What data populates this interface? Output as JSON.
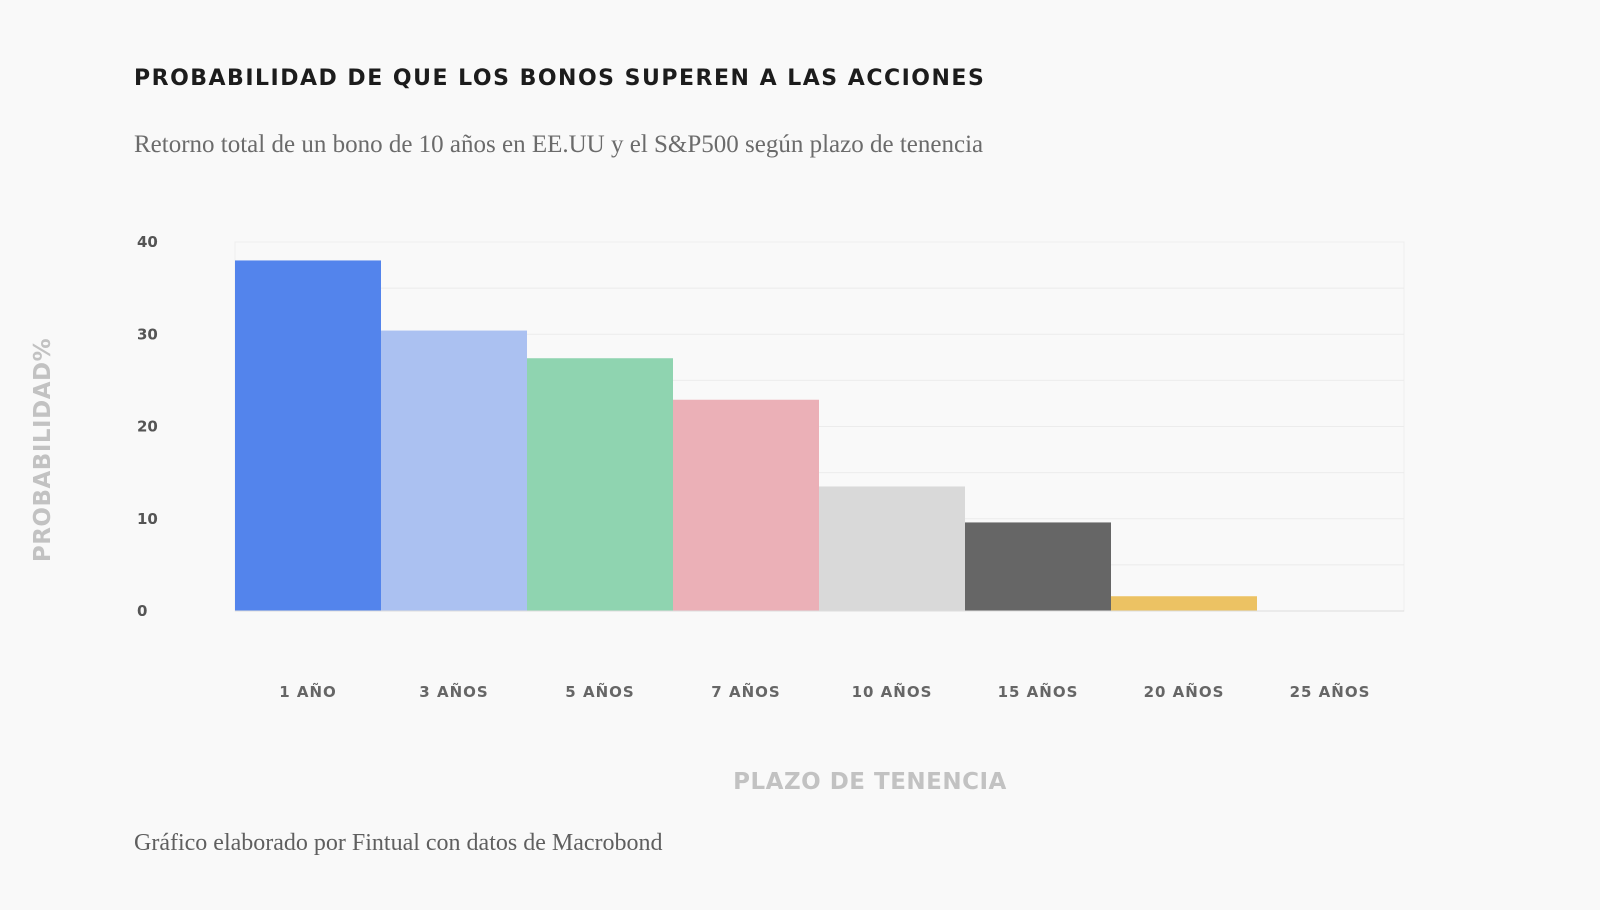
{
  "header": {
    "title": "PROBABILIDAD DE QUE LOS BONOS SUPEREN A LAS ACCIONES",
    "subtitle": "Retorno total de un bono de 10 años en EE.UU y el S&P500 según plazo de tenencia"
  },
  "footer": {
    "source": "Gráfico elaborado por Fintual con datos de Macrobond"
  },
  "chart_data": {
    "type": "bar",
    "categories": [
      "1 AÑO",
      "3 AÑOS",
      "5 AÑOS",
      "7 AÑOS",
      "10 AÑOS",
      "15 AÑOS",
      "20 AÑOS",
      "25 AÑOS"
    ],
    "values": [
      38,
      30.4,
      27.4,
      22.9,
      13.5,
      9.6,
      1.6,
      0
    ],
    "colors": [
      "#5384ec",
      "#abc1f1",
      "#8fd4b0",
      "#ebb0b7",
      "#d9d9d9",
      "#666666",
      "#ecc263",
      "#d9d9d9"
    ],
    "xlabel": "PLAZO DE TENENCIA",
    "ylabel": "PROBABILIDAD%",
    "ylim": [
      0,
      40
    ],
    "yticks": [
      0,
      10,
      20,
      30,
      40
    ],
    "grid": true,
    "legend": "none"
  }
}
